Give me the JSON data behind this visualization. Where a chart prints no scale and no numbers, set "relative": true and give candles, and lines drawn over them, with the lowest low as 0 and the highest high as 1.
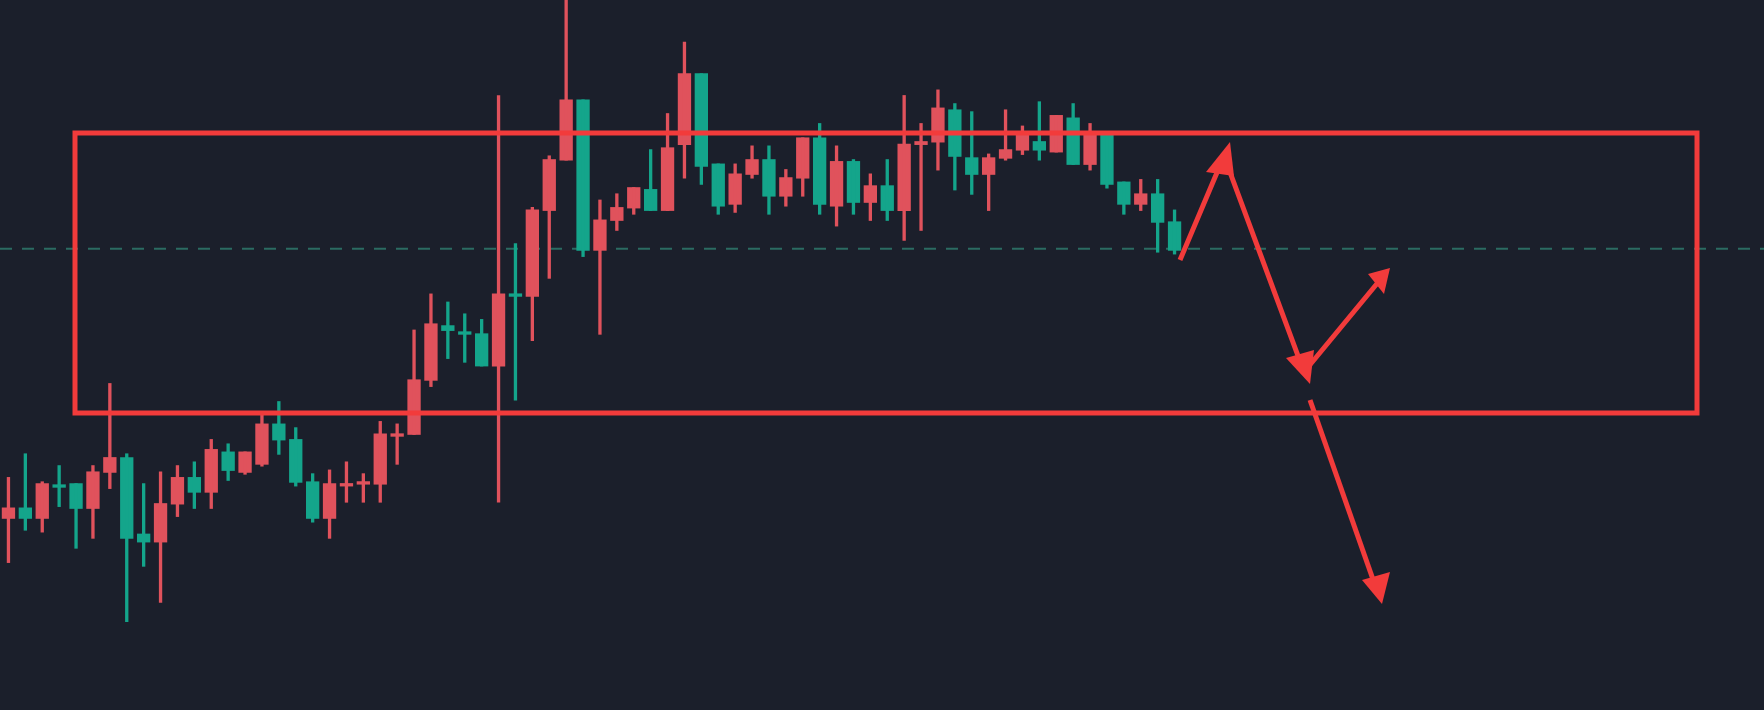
{
  "chart_data": {
    "type": "candlestick",
    "relative": true,
    "categories": [
      null,
      null,
      null,
      null,
      null,
      null,
      null,
      null,
      null,
      null,
      null,
      null,
      null,
      null,
      null,
      null,
      null,
      null,
      null,
      null,
      null,
      null,
      null,
      null,
      null,
      null,
      null,
      null,
      null,
      null,
      null,
      null,
      null,
      null,
      null,
      null,
      null,
      null,
      null,
      null,
      null,
      null,
      null,
      null,
      null,
      null,
      null,
      null,
      null,
      null,
      null,
      null,
      null,
      null,
      null,
      null,
      null,
      null,
      null,
      null,
      null,
      null,
      null,
      null,
      null,
      null,
      null,
      null,
      null,
      null
    ],
    "ohlc": [
      [
        0.167,
        0.232,
        0.096,
        0.183
      ],
      [
        0.183,
        0.27,
        0.148,
        0.167
      ],
      [
        0.167,
        0.225,
        0.145,
        0.222
      ],
      [
        0.22,
        0.251,
        0.186,
        0.217
      ],
      [
        0.222,
        0.222,
        0.119,
        0.183
      ],
      [
        0.183,
        0.251,
        0.135,
        0.241
      ],
      [
        0.241,
        0.383,
        0.215,
        0.264
      ],
      [
        0.264,
        0.27,
        0.0,
        0.135
      ],
      [
        0.141,
        0.222,
        0.09,
        0.129
      ],
      [
        0.129,
        0.241,
        0.032,
        0.19
      ],
      [
        0.19,
        0.251,
        0.17,
        0.232
      ],
      [
        0.232,
        0.257,
        0.183,
        0.209
      ],
      [
        0.209,
        0.293,
        0.183,
        0.277
      ],
      [
        0.273,
        0.286,
        0.228,
        0.244
      ],
      [
        0.241,
        0.273,
        0.238,
        0.273
      ],
      [
        0.254,
        0.334,
        0.251,
        0.318
      ],
      [
        0.318,
        0.354,
        0.27,
        0.293
      ],
      [
        0.293,
        0.312,
        0.219,
        0.225
      ],
      [
        0.225,
        0.238,
        0.161,
        0.167
      ],
      [
        0.167,
        0.244,
        0.135,
        0.222
      ],
      [
        0.219,
        0.257,
        0.193,
        0.222
      ],
      [
        0.222,
        0.238,
        0.193,
        0.225
      ],
      [
        0.222,
        0.322,
        0.193,
        0.302
      ],
      [
        0.299,
        0.318,
        0.254,
        0.302
      ],
      [
        0.302,
        0.469,
        0.302,
        0.389
      ],
      [
        0.389,
        0.527,
        0.379,
        0.479
      ],
      [
        0.476,
        0.514,
        0.424,
        0.469
      ],
      [
        0.466,
        0.495,
        0.418,
        0.463
      ],
      [
        0.463,
        0.486,
        0.412,
        0.412
      ],
      [
        0.412,
        0.846,
        0.193,
        0.527
      ],
      [
        0.527,
        0.608,
        0.357,
        0.524
      ],
      [
        0.524,
        0.666,
        0.453,
        0.662
      ],
      [
        0.662,
        0.749,
        0.553,
        0.743
      ],
      [
        0.743,
        1.0,
        0.743,
        0.839
      ],
      [
        0.839,
        0.839,
        0.588,
        0.598
      ],
      [
        0.598,
        0.678,
        0.463,
        0.646
      ],
      [
        0.646,
        0.688,
        0.63,
        0.666
      ],
      [
        0.666,
        0.698,
        0.656,
        0.698
      ],
      [
        0.695,
        0.759,
        0.662,
        0.662
      ],
      [
        0.662,
        0.817,
        0.662,
        0.762
      ],
      [
        0.768,
        0.932,
        0.714,
        0.881
      ],
      [
        0.881,
        0.881,
        0.704,
        0.733
      ],
      [
        0.736,
        0.736,
        0.656,
        0.669
      ],
      [
        0.672,
        0.736,
        0.659,
        0.72
      ],
      [
        0.72,
        0.765,
        0.714,
        0.743
      ],
      [
        0.743,
        0.765,
        0.656,
        0.685
      ],
      [
        0.685,
        0.727,
        0.669,
        0.714
      ],
      [
        0.714,
        0.778,
        0.685,
        0.778
      ],
      [
        0.778,
        0.801,
        0.656,
        0.672
      ],
      [
        0.669,
        0.765,
        0.637,
        0.74
      ],
      [
        0.74,
        0.743,
        0.656,
        0.675
      ],
      [
        0.675,
        0.72,
        0.646,
        0.701
      ],
      [
        0.701,
        0.743,
        0.646,
        0.662
      ],
      [
        0.662,
        0.846,
        0.614,
        0.768
      ],
      [
        0.768,
        0.801,
        0.63,
        0.772
      ],
      [
        0.772,
        0.855,
        0.727,
        0.826
      ],
      [
        0.823,
        0.833,
        0.695,
        0.749
      ],
      [
        0.746,
        0.82,
        0.688,
        0.72
      ],
      [
        0.72,
        0.752,
        0.662,
        0.746
      ],
      [
        0.746,
        0.823,
        0.743,
        0.759
      ],
      [
        0.759,
        0.797,
        0.752,
        0.785
      ],
      [
        0.772,
        0.836,
        0.743,
        0.759
      ],
      [
        0.756,
        0.814,
        0.756,
        0.814
      ],
      [
        0.81,
        0.833,
        0.736,
        0.736
      ],
      [
        0.736,
        0.801,
        0.727,
        0.785
      ],
      [
        0.785,
        0.785,
        0.698,
        0.704
      ],
      [
        0.707,
        0.707,
        0.656,
        0.672
      ],
      [
        0.672,
        0.711,
        0.662,
        0.688
      ],
      [
        0.688,
        0.711,
        0.595,
        0.643
      ],
      [
        0.643,
        0.662,
        0.592,
        0.598
      ]
    ],
    "colors": [
      "#e0525c",
      "#14a58b",
      "#e0525c",
      "#14a58b",
      "#14a58b",
      "#e0525c",
      "#e0525c",
      "#14a58b",
      "#14a58b",
      "#e0525c",
      "#e0525c",
      "#14a58b",
      "#e0525c",
      "#14a58b",
      "#e0525c",
      "#e0525c",
      "#14a58b",
      "#14a58b",
      "#14a58b",
      "#e0525c",
      "#e0525c",
      "#e0525c",
      "#e0525c",
      "#e0525c",
      "#e0525c",
      "#e0525c",
      "#14a58b",
      "#14a58b",
      "#14a58b",
      "#e0525c",
      "#14a58b",
      "#e0525c",
      "#e0525c",
      "#e0525c",
      "#14a58b",
      "#e0525c",
      "#e0525c",
      "#e0525c",
      "#14a58b",
      "#e0525c",
      "#e0525c",
      "#14a58b",
      "#14a58b",
      "#e0525c",
      "#e0525c",
      "#14a58b",
      "#e0525c",
      "#e0525c",
      "#14a58b",
      "#e0525c",
      "#14a58b",
      "#e0525c",
      "#14a58b",
      "#e0525c",
      "#e0525c",
      "#e0525c",
      "#14a58b",
      "#14a58b",
      "#e0525c",
      "#e0525c",
      "#e0525c",
      "#14a58b",
      "#e0525c",
      "#14a58b",
      "#e0525c",
      "#14a58b",
      "#14a58b",
      "#e0525c",
      "#14a58b",
      "#14a58b"
    ],
    "ref_lines": [
      {
        "axis": "y",
        "value": 0.6,
        "color": "#2b6b62",
        "line_style": "dashed"
      }
    ]
  }
}
